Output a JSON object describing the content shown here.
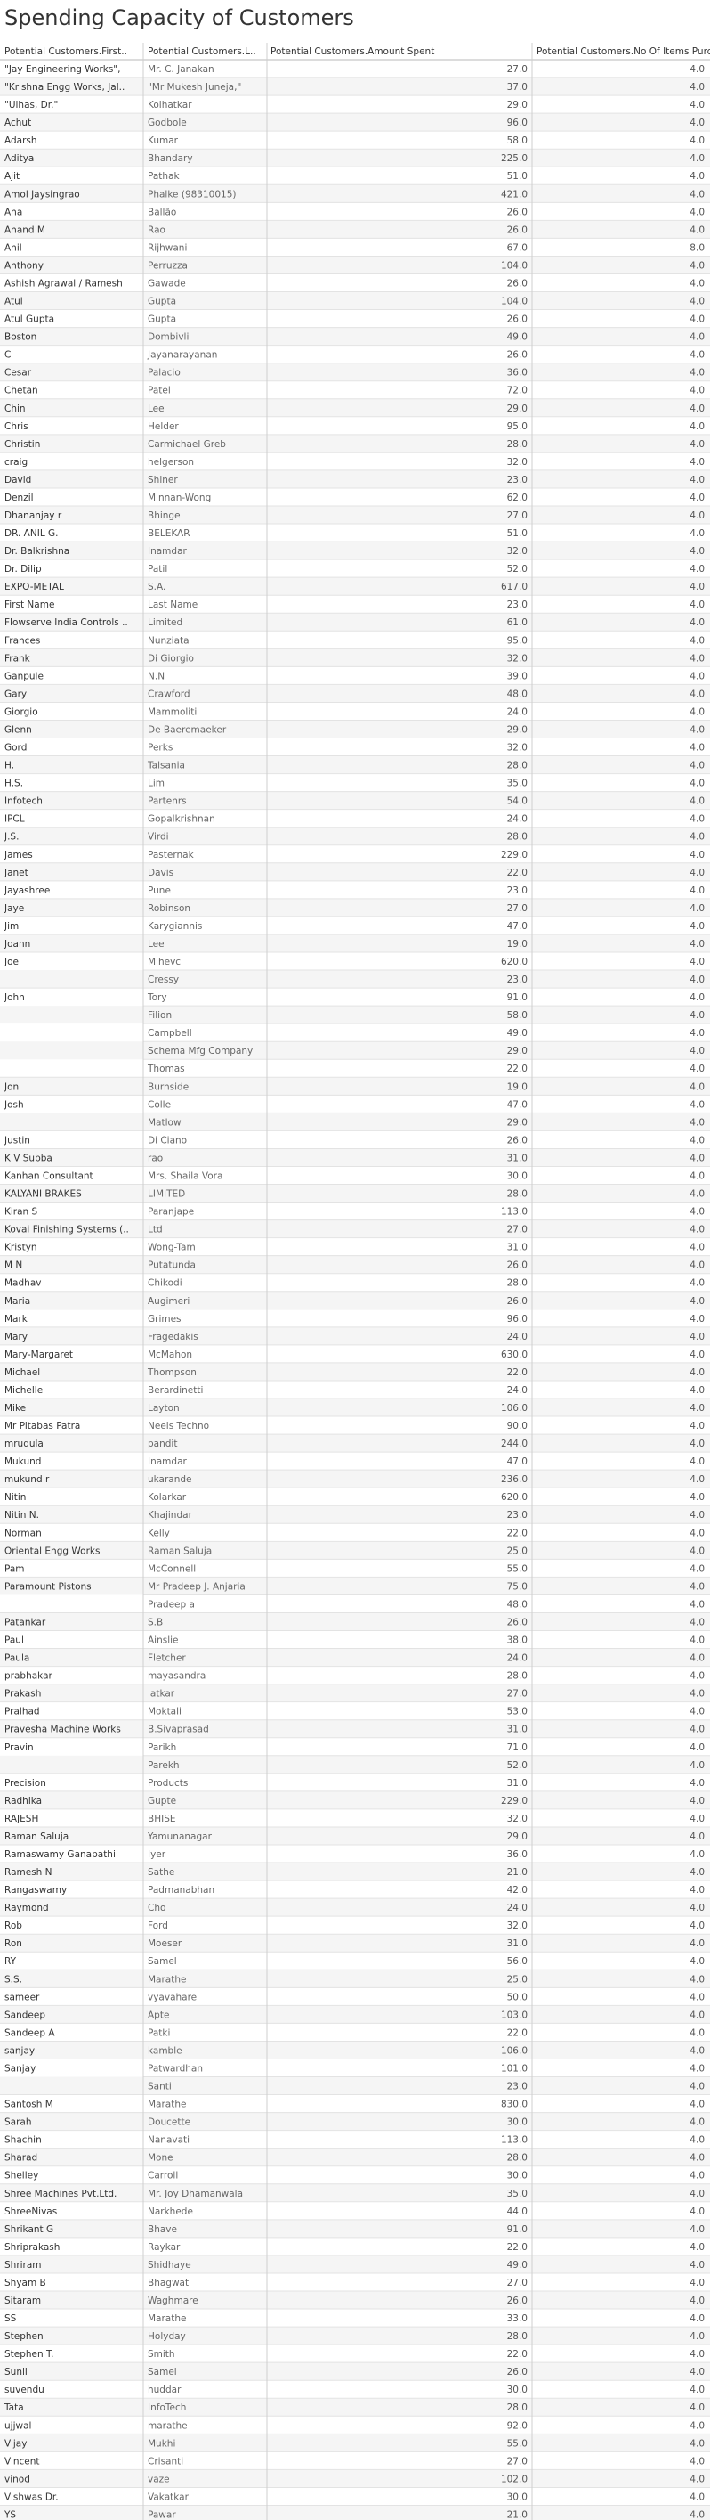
{
  "chart_data": {
    "type": "table",
    "title": "Spending Capacity of Customers",
    "columns": [
      "Potential Customers.First..",
      "Potential Customers.L..",
      "Potential Customers.Amount Spent",
      "Potential Customers.No Of Items Purcha.."
    ],
    "rows": [
      [
        "\"Jay Engineering Works\",",
        "Mr. C. Janakan",
        "27.0",
        "4.0"
      ],
      [
        "\"Krishna Engg Works, Jal..",
        "\"Mr Mukesh Juneja,\"",
        "37.0",
        "4.0"
      ],
      [
        "\"Ulhas, Dr.\"",
        "Kolhatkar",
        "29.0",
        "4.0"
      ],
      [
        "Achut",
        "Godbole",
        "96.0",
        "4.0"
      ],
      [
        "Adarsh",
        "Kumar",
        "58.0",
        "4.0"
      ],
      [
        "Aditya",
        "Bhandary",
        "225.0",
        "4.0"
      ],
      [
        "Ajit",
        "Pathak",
        "51.0",
        "4.0"
      ],
      [
        "Amol Jaysingrao",
        "Phalke (98310015)",
        "421.0",
        "4.0"
      ],
      [
        "Ana",
        "Ballão",
        "26.0",
        "4.0"
      ],
      [
        "Anand M",
        "Rao",
        "26.0",
        "4.0"
      ],
      [
        "Anil",
        "Rijhwani",
        "67.0",
        "8.0"
      ],
      [
        "Anthony",
        "Perruzza",
        "104.0",
        "4.0"
      ],
      [
        "Ashish Agrawal / Ramesh",
        "Gawade",
        "26.0",
        "4.0"
      ],
      [
        "Atul",
        "Gupta",
        "104.0",
        "4.0"
      ],
      [
        "Atul Gupta",
        "Gupta",
        "26.0",
        "4.0"
      ],
      [
        "Boston",
        "Dombivli",
        "49.0",
        "4.0"
      ],
      [
        "C",
        "Jayanarayanan",
        "26.0",
        "4.0"
      ],
      [
        "Cesar",
        "Palacio",
        "36.0",
        "4.0"
      ],
      [
        "Chetan",
        "Patel",
        "72.0",
        "4.0"
      ],
      [
        "Chin",
        "Lee",
        "29.0",
        "4.0"
      ],
      [
        "Chris",
        "Helder",
        "95.0",
        "4.0"
      ],
      [
        "Christin",
        "Carmichael Greb",
        "28.0",
        "4.0"
      ],
      [
        "craig",
        "helgerson",
        "32.0",
        "4.0"
      ],
      [
        "David",
        "Shiner",
        "23.0",
        "4.0"
      ],
      [
        "Denzil",
        "Minnan-Wong",
        "62.0",
        "4.0"
      ],
      [
        "Dhananjay r",
        "Bhinge",
        "27.0",
        "4.0"
      ],
      [
        "DR. ANIL G.",
        "BELEKAR",
        "51.0",
        "4.0"
      ],
      [
        "Dr. Balkrishna",
        "Inamdar",
        "32.0",
        "4.0"
      ],
      [
        "Dr. Dilip",
        "Patil",
        "52.0",
        "4.0"
      ],
      [
        "EXPO-METAL",
        "S.A.",
        "617.0",
        "4.0"
      ],
      [
        "First Name",
        "Last Name",
        "23.0",
        "4.0"
      ],
      [
        "Flowserve India Controls ..",
        "Limited",
        "61.0",
        "4.0"
      ],
      [
        "Frances",
        "Nunziata",
        "95.0",
        "4.0"
      ],
      [
        "Frank",
        "Di Giorgio",
        "32.0",
        "4.0"
      ],
      [
        "Ganpule",
        "N.N",
        "39.0",
        "4.0"
      ],
      [
        "Gary",
        "Crawford",
        "48.0",
        "4.0"
      ],
      [
        "Giorgio",
        "Mammoliti",
        "24.0",
        "4.0"
      ],
      [
        "Glenn",
        "De Baeremaeker",
        "29.0",
        "4.0"
      ],
      [
        "Gord",
        "Perks",
        "32.0",
        "4.0"
      ],
      [
        "H.",
        "Talsania",
        "28.0",
        "4.0"
      ],
      [
        "H.S.",
        "Lim",
        "35.0",
        "4.0"
      ],
      [
        "Infotech",
        "Partenrs",
        "54.0",
        "4.0"
      ],
      [
        "IPCL",
        "Gopalkrishnan",
        "24.0",
        "4.0"
      ],
      [
        "J.S.",
        "Virdi",
        "28.0",
        "4.0"
      ],
      [
        "James",
        "Pasternak",
        "229.0",
        "4.0"
      ],
      [
        "Janet",
        "Davis",
        "22.0",
        "4.0"
      ],
      [
        "Jayashree",
        "Pune",
        "23.0",
        "4.0"
      ],
      [
        "Jaye",
        "Robinson",
        "27.0",
        "4.0"
      ],
      [
        "Jim",
        "Karygiannis",
        "47.0",
        "4.0"
      ],
      [
        "Joann",
        "Lee",
        "19.0",
        "4.0"
      ],
      [
        "Joe",
        "Mihevc",
        "620.0",
        "4.0"
      ],
      [
        "",
        "Cressy",
        "23.0",
        "4.0"
      ],
      [
        "John",
        "Tory",
        "91.0",
        "4.0"
      ],
      [
        "",
        "Filion",
        "58.0",
        "4.0"
      ],
      [
        "",
        "Campbell",
        "49.0",
        "4.0"
      ],
      [
        "",
        "Schema Mfg Company",
        "29.0",
        "4.0"
      ],
      [
        "",
        "Thomas",
        "22.0",
        "4.0"
      ],
      [
        "Jon",
        "Burnside",
        "19.0",
        "4.0"
      ],
      [
        "Josh",
        "Colle",
        "47.0",
        "4.0"
      ],
      [
        "",
        "Matlow",
        "29.0",
        "4.0"
      ],
      [
        "Justin",
        "Di Ciano",
        "26.0",
        "4.0"
      ],
      [
        "K V Subba",
        "rao",
        "31.0",
        "4.0"
      ],
      [
        "Kanhan Consultant",
        "Mrs. Shaila Vora",
        "30.0",
        "4.0"
      ],
      [
        "KALYANI BRAKES",
        "LIMITED",
        "28.0",
        "4.0"
      ],
      [
        "Kiran S",
        "Paranjape",
        "113.0",
        "4.0"
      ],
      [
        "Kovai Finishing Systems (..",
        "Ltd",
        "27.0",
        "4.0"
      ],
      [
        "Kristyn",
        "Wong-Tam",
        "31.0",
        "4.0"
      ],
      [
        "M N",
        "Putatunda",
        "26.0",
        "4.0"
      ],
      [
        "Madhav",
        "Chikodi",
        "28.0",
        "4.0"
      ],
      [
        "Maria",
        "Augimeri",
        "26.0",
        "4.0"
      ],
      [
        "Mark",
        "Grimes",
        "96.0",
        "4.0"
      ],
      [
        "Mary",
        "Fragedakis",
        "24.0",
        "4.0"
      ],
      [
        "Mary-Margaret",
        "McMahon",
        "630.0",
        "4.0"
      ],
      [
        "Michael",
        "Thompson",
        "22.0",
        "4.0"
      ],
      [
        "Michelle",
        "Berardinetti",
        "24.0",
        "4.0"
      ],
      [
        "Mike",
        "Layton",
        "106.0",
        "4.0"
      ],
      [
        "Mr Pitabas Patra",
        "Neels Techno",
        "90.0",
        "4.0"
      ],
      [
        "mrudula",
        "pandit",
        "244.0",
        "4.0"
      ],
      [
        "Mukund",
        "Inamdar",
        "47.0",
        "4.0"
      ],
      [
        "mukund r",
        "ukarande",
        "236.0",
        "4.0"
      ],
      [
        "Nitin",
        "Kolarkar",
        "620.0",
        "4.0"
      ],
      [
        "Nitin N.",
        "Khajindar",
        "23.0",
        "4.0"
      ],
      [
        "Norman",
        "Kelly",
        "22.0",
        "4.0"
      ],
      [
        "Oriental Engg Works",
        "Raman Saluja",
        "25.0",
        "4.0"
      ],
      [
        "Pam",
        "McConnell",
        "55.0",
        "4.0"
      ],
      [
        "Paramount Pistons",
        "Mr Pradeep J. Anjaria",
        "75.0",
        "4.0"
      ],
      [
        "",
        "Pradeep a",
        "48.0",
        "4.0"
      ],
      [
        "Patankar",
        "S.B",
        "26.0",
        "4.0"
      ],
      [
        "Paul",
        "Ainslie",
        "38.0",
        "4.0"
      ],
      [
        "Paula",
        "Fletcher",
        "24.0",
        "4.0"
      ],
      [
        "prabhakar",
        "mayasandra",
        "28.0",
        "4.0"
      ],
      [
        "Prakash",
        "latkar",
        "27.0",
        "4.0"
      ],
      [
        "Pralhad",
        "Moktali",
        "53.0",
        "4.0"
      ],
      [
        "Pravesha Machine Works",
        "B.Sivaprasad",
        "31.0",
        "4.0"
      ],
      [
        "Pravin",
        "Parikh",
        "71.0",
        "4.0"
      ],
      [
        "",
        "Parekh",
        "52.0",
        "4.0"
      ],
      [
        "Precision",
        "Products",
        "31.0",
        "4.0"
      ],
      [
        "Radhika",
        "Gupte",
        "229.0",
        "4.0"
      ],
      [
        "RAJESH",
        "BHISE",
        "32.0",
        "4.0"
      ],
      [
        "Raman Saluja",
        "Yamunanagar",
        "29.0",
        "4.0"
      ],
      [
        "Ramaswamy Ganapathi",
        "Iyer",
        "36.0",
        "4.0"
      ],
      [
        "Ramesh N",
        "Sathe",
        "21.0",
        "4.0"
      ],
      [
        "Rangaswamy",
        "Padmanabhan",
        "42.0",
        "4.0"
      ],
      [
        "Raymond",
        "Cho",
        "24.0",
        "4.0"
      ],
      [
        "Rob",
        "Ford",
        "32.0",
        "4.0"
      ],
      [
        "Ron",
        "Moeser",
        "31.0",
        "4.0"
      ],
      [
        "RY",
        "Samel",
        "56.0",
        "4.0"
      ],
      [
        "S.S.",
        "Marathe",
        "25.0",
        "4.0"
      ],
      [
        "sameer",
        "vyavahare",
        "50.0",
        "4.0"
      ],
      [
        "Sandeep",
        "Apte",
        "103.0",
        "4.0"
      ],
      [
        "Sandeep A",
        "Patki",
        "22.0",
        "4.0"
      ],
      [
        "sanjay",
        "kamble",
        "106.0",
        "4.0"
      ],
      [
        "Sanjay",
        "Patwardhan",
        "101.0",
        "4.0"
      ],
      [
        "",
        "Santi",
        "23.0",
        "4.0"
      ],
      [
        "Santosh M",
        "Marathe",
        "830.0",
        "4.0"
      ],
      [
        "Sarah",
        "Doucette",
        "30.0",
        "4.0"
      ],
      [
        "Shachin",
        "Nanavati",
        "113.0",
        "4.0"
      ],
      [
        "Sharad",
        "Mone",
        "28.0",
        "4.0"
      ],
      [
        "Shelley",
        "Carroll",
        "30.0",
        "4.0"
      ],
      [
        "Shree Machines Pvt.Ltd.",
        "Mr. Joy Dhamanwala",
        "35.0",
        "4.0"
      ],
      [
        "ShreeNivas",
        "Narkhede",
        "44.0",
        "4.0"
      ],
      [
        "Shrikant G",
        "Bhave",
        "91.0",
        "4.0"
      ],
      [
        "Shriprakash",
        "Raykar",
        "22.0",
        "4.0"
      ],
      [
        "Shriram",
        "Shidhaye",
        "49.0",
        "4.0"
      ],
      [
        "Shyam B",
        "Bhagwat",
        "27.0",
        "4.0"
      ],
      [
        "Sitaram",
        "Waghmare",
        "26.0",
        "4.0"
      ],
      [
        "SS",
        "Marathe",
        "33.0",
        "4.0"
      ],
      [
        "Stephen",
        "Holyday",
        "28.0",
        "4.0"
      ],
      [
        "Stephen T.",
        "Smith",
        "22.0",
        "4.0"
      ],
      [
        "Sunil",
        "Samel",
        "26.0",
        "4.0"
      ],
      [
        "suvendu",
        "huddar",
        "30.0",
        "4.0"
      ],
      [
        "Tata",
        "InfoTech",
        "28.0",
        "4.0"
      ],
      [
        "ujjwal",
        "marathe",
        "92.0",
        "4.0"
      ],
      [
        "Vijay",
        "Mukhi",
        "55.0",
        "4.0"
      ],
      [
        "Vincent",
        "Crisanti",
        "27.0",
        "4.0"
      ],
      [
        "vinod",
        "vaze",
        "102.0",
        "4.0"
      ],
      [
        "Vishwas Dr.",
        "Vakatkar",
        "30.0",
        "4.0"
      ],
      [
        "YS",
        "Pawar",
        "21.0",
        "4.0"
      ]
    ]
  }
}
